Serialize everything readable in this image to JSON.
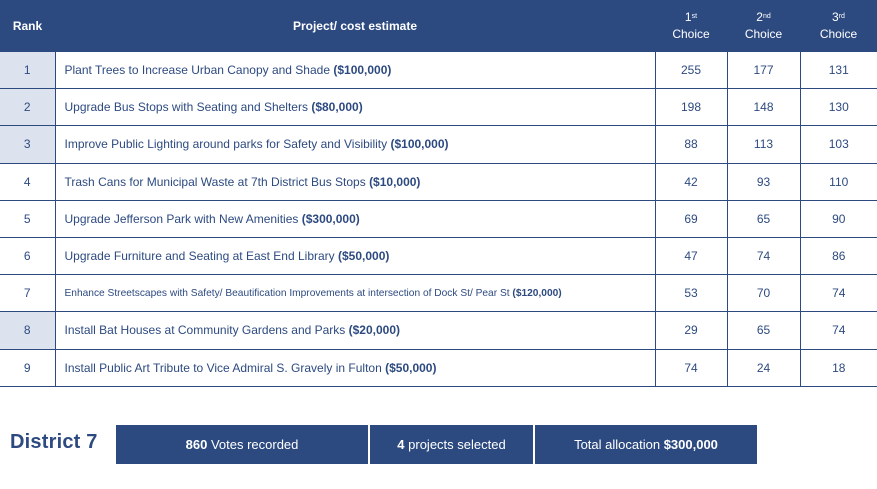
{
  "table": {
    "headers": {
      "rank": "Rank",
      "project": "Project/ cost estimate",
      "choice1_num": "1",
      "choice1_sup": "st",
      "choice2_num": "2",
      "choice2_sup": "nd",
      "choice3_num": "3",
      "choice3_sup": "rd",
      "choice_label": "Choice"
    },
    "rows": [
      {
        "rank": "1",
        "name": "Plant Trees to Increase Urban Canopy and Shade",
        "cost": "($100,000)",
        "first": "255",
        "second": "177",
        "third": "131"
      },
      {
        "rank": "2",
        "name": "Upgrade Bus Stops with Seating and Shelters",
        "cost": "($80,000)",
        "first": "198",
        "second": "148",
        "third": "130"
      },
      {
        "rank": "3",
        "name": "Improve Public Lighting around parks for Safety and Visibility",
        "cost": "($100,000)",
        "first": "88",
        "second": "113",
        "third": "103"
      },
      {
        "rank": "4",
        "name": "Trash Cans for Municipal Waste at 7th District Bus Stops",
        "cost": "($10,000)",
        "first": "42",
        "second": "93",
        "third": "110"
      },
      {
        "rank": "5",
        "name": "Upgrade Jefferson Park with New Amenities",
        "cost": "($300,000)",
        "first": "69",
        "second": "65",
        "third": "90"
      },
      {
        "rank": "6",
        "name": "Upgrade Furniture and Seating at East End Library",
        "cost": "($50,000)",
        "first": "47",
        "second": "74",
        "third": "86"
      },
      {
        "rank": "7",
        "name": "Enhance Streetscapes with Safety/ Beautification Improvements at intersection of Dock St/ Pear St",
        "cost": "($120,000)",
        "first": "53",
        "second": "70",
        "third": "74"
      },
      {
        "rank": "8",
        "name": "Install Bat Houses at Community Gardens and Parks",
        "cost": "($20,000)",
        "first": "29",
        "second": "65",
        "third": "74"
      },
      {
        "rank": "9",
        "name": "Install Public Art Tribute to Vice Admiral S. Gravely in Fulton",
        "cost": "($50,000)",
        "first": "74",
        "second": "24",
        "third": "18"
      }
    ]
  },
  "summary": {
    "district": "District 7",
    "votes_value": "860",
    "votes_label": "Votes recorded",
    "projects_value": "4",
    "projects_label": "projects selected",
    "allocation_label": "Total allocation",
    "allocation_value": "$300,000"
  }
}
